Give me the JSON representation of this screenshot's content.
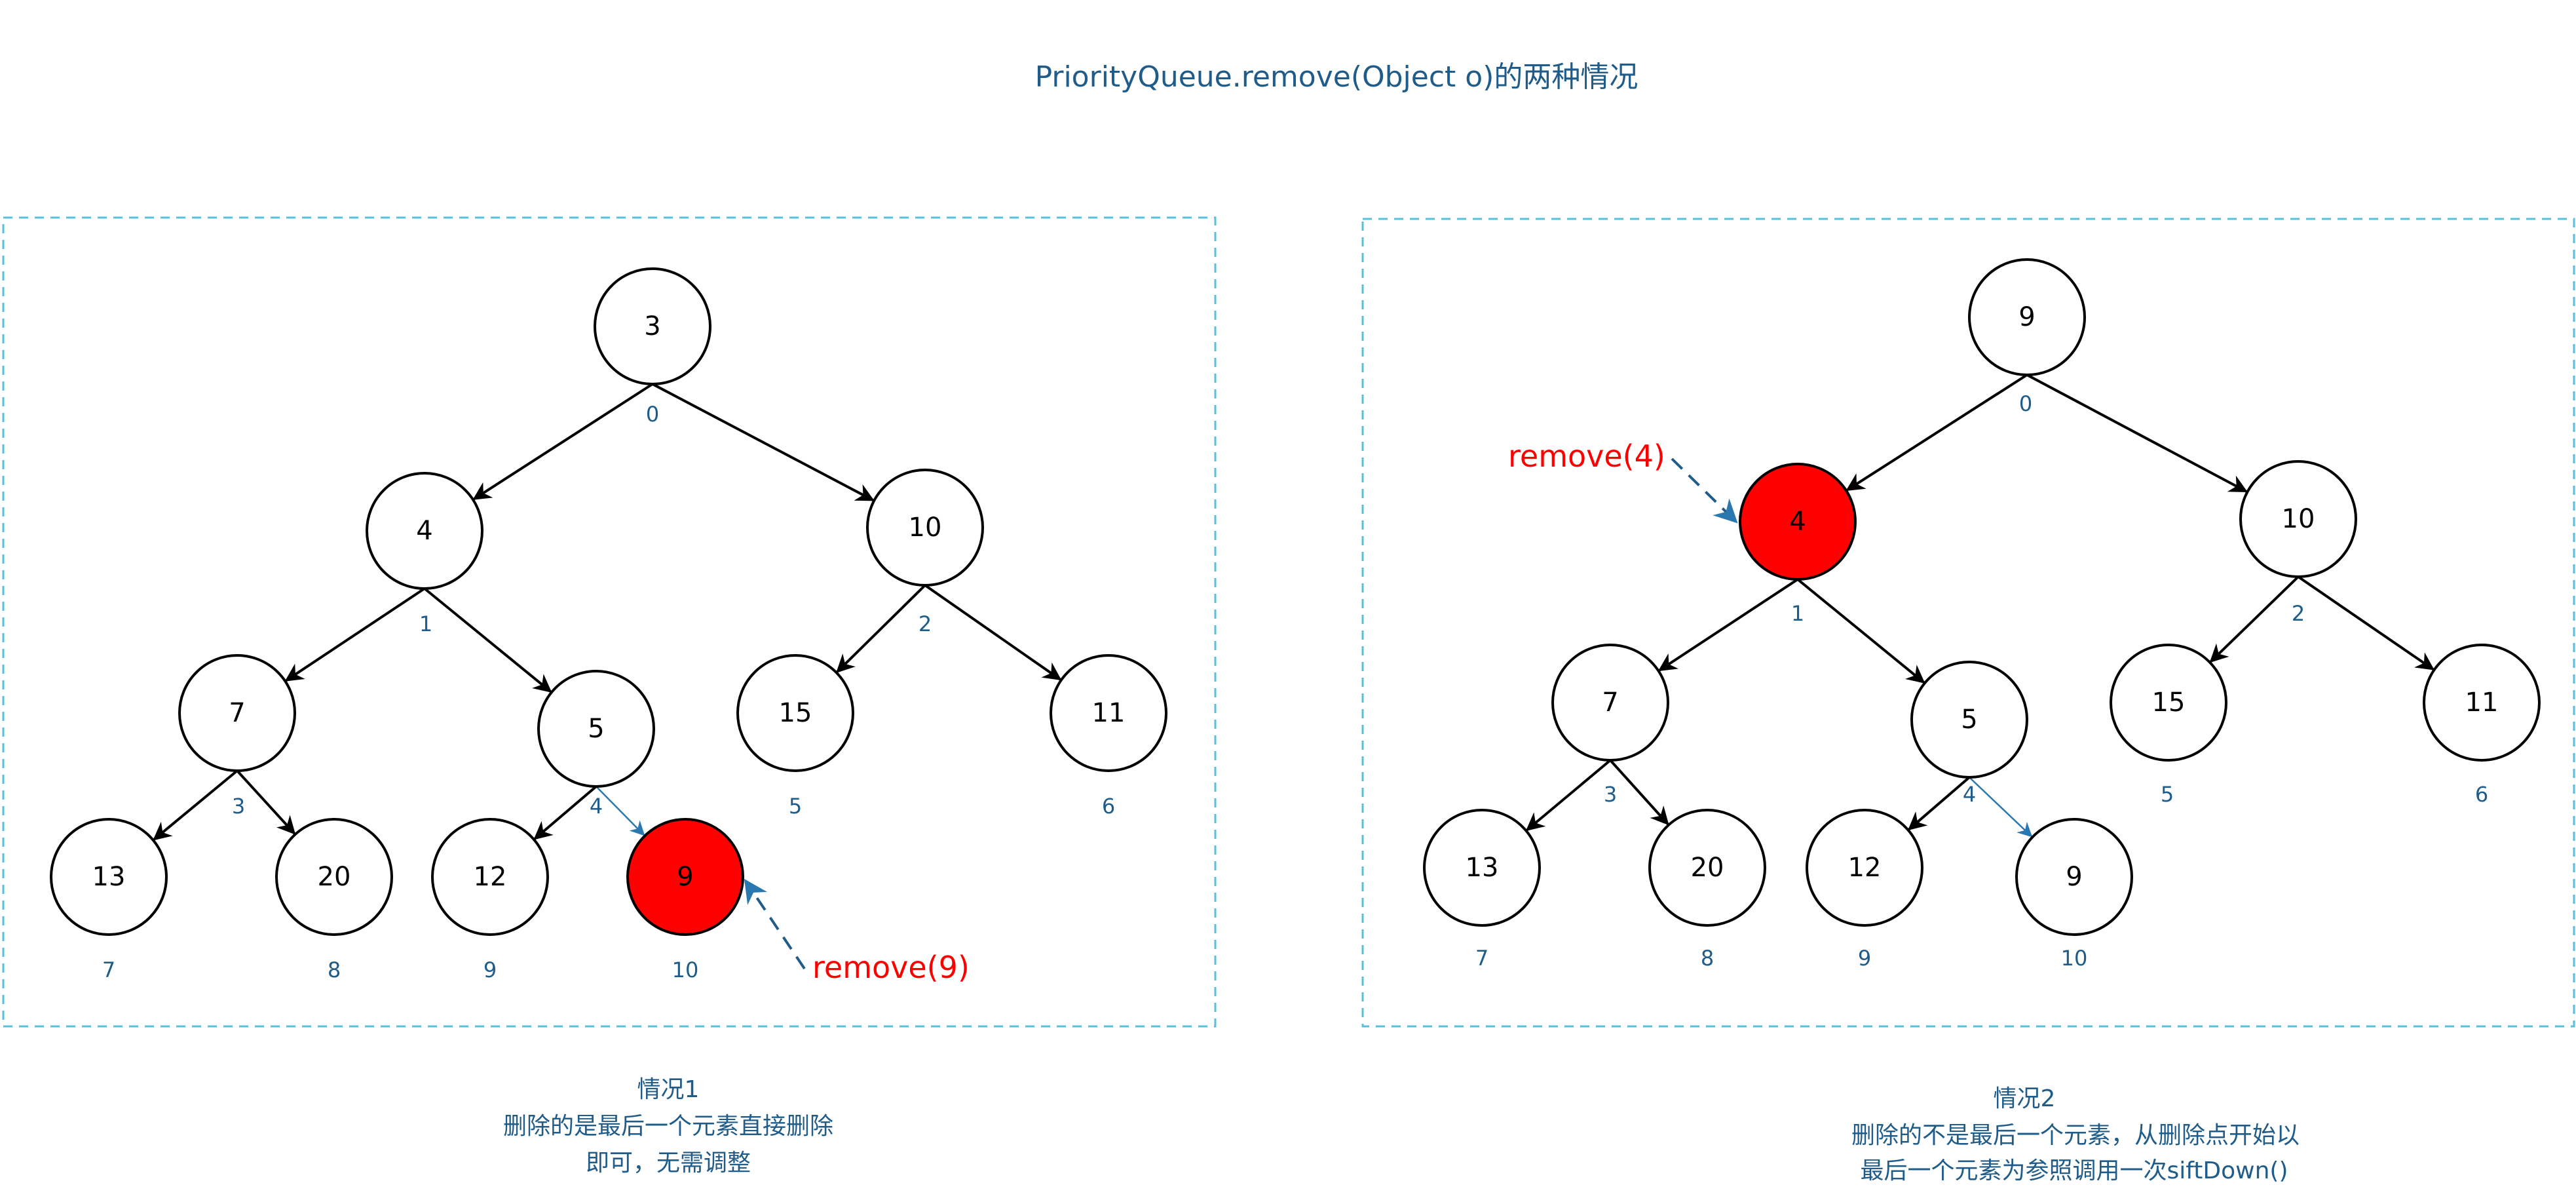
{
  "title": "PriorityQueue.remove(Object o)的两种情况",
  "colors": {
    "highlight": "#ff0000",
    "accent_text": "#1f5c8a",
    "panel_border": "#56c1dd",
    "edge": "#000000",
    "moved_edge": "#2a78b0"
  },
  "case1": {
    "nodes": [
      {
        "value": "3",
        "index": "0"
      },
      {
        "value": "4",
        "index": "1"
      },
      {
        "value": "10",
        "index": "2"
      },
      {
        "value": "7",
        "index": "3"
      },
      {
        "value": "5",
        "index": "4"
      },
      {
        "value": "15",
        "index": "5"
      },
      {
        "value": "11",
        "index": "6"
      },
      {
        "value": "13",
        "index": "7"
      },
      {
        "value": "20",
        "index": "8"
      },
      {
        "value": "12",
        "index": "9"
      },
      {
        "value": "9",
        "index": "10",
        "highlight": true
      }
    ],
    "remove_label": "remove(9)",
    "caption": [
      "情况1",
      "删除的是最后一个元素直接删除",
      "即可，无需调整"
    ]
  },
  "case2": {
    "nodes": [
      {
        "value": "9",
        "index": "0"
      },
      {
        "value": "4",
        "index": "1",
        "highlight": true
      },
      {
        "value": "10",
        "index": "2"
      },
      {
        "value": "7",
        "index": "3"
      },
      {
        "value": "5",
        "index": "4"
      },
      {
        "value": "15",
        "index": "5"
      },
      {
        "value": "11",
        "index": "6"
      },
      {
        "value": "13",
        "index": "7"
      },
      {
        "value": "20",
        "index": "8"
      },
      {
        "value": "12",
        "index": "9"
      },
      {
        "value": "9",
        "index": "10"
      }
    ],
    "remove_label": "remove(4)",
    "caption": [
      "情况2",
      "删除的不是最后一个元素，从删除点开始以",
      "最后一个元素为参照调用一次siftDown()"
    ]
  }
}
